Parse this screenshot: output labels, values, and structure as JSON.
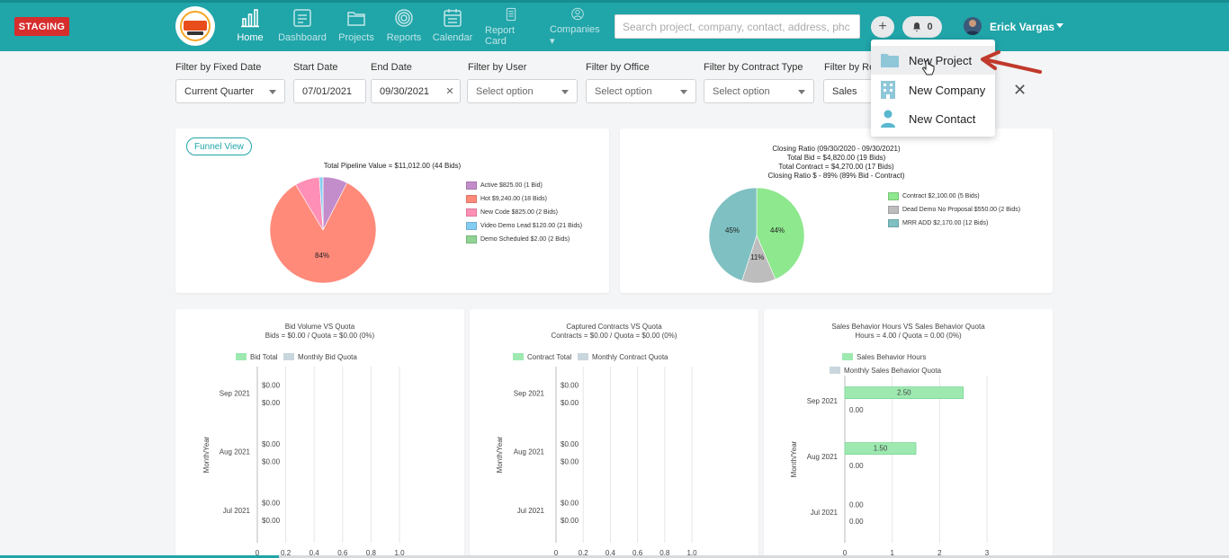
{
  "env_badge": "STAGING",
  "nav": [
    {
      "label": "Home",
      "icon": "bar-chart-icon"
    },
    {
      "label": "Dashboard",
      "icon": "dashboard-icon"
    },
    {
      "label": "Projects",
      "icon": "folder-icon"
    },
    {
      "label": "Reports",
      "icon": "target-icon"
    },
    {
      "label": "Calendar",
      "icon": "calendar-icon"
    },
    {
      "label": "Report Card",
      "icon": "report-card-icon"
    },
    {
      "label": "Companies",
      "icon": "user-circle-icon"
    }
  ],
  "search": {
    "placeholder": "Search project, company, contact, address, phc"
  },
  "notifications": {
    "count": "0"
  },
  "user": {
    "name": "Erick Vargas"
  },
  "filters": {
    "fixed_date": {
      "label": "Filter by Fixed Date",
      "value": "Current Quarter"
    },
    "start_date": {
      "label": "Start Date",
      "value": "07/01/2021"
    },
    "end_date": {
      "label": "End Date",
      "value": "09/30/2021"
    },
    "user": {
      "label": "Filter by User",
      "value": "Select option"
    },
    "office": {
      "label": "Filter by Office",
      "value": "Select option"
    },
    "contract_type": {
      "label": "Filter by Contract Type",
      "value": "Select option"
    },
    "report": {
      "label": "Filter by Re",
      "value": "Sales"
    }
  },
  "dropdown": {
    "items": [
      {
        "label": "New Project",
        "icon": "folder-icon"
      },
      {
        "label": "New Company",
        "icon": "building-icon"
      },
      {
        "label": "New Contact",
        "icon": "person-icon"
      }
    ]
  },
  "pipeline_card": {
    "funnel_button": "Funnel View",
    "title": "Total Pipeline Value = $11,012.00 (44 Bids)",
    "pie_label": "84%",
    "legend": [
      {
        "label": "Active $825.00 (1 Bid)",
        "color": "#c38ccb"
      },
      {
        "label": "Hot $9,240.00 (18 Bids)",
        "color": "#ff8a7a"
      },
      {
        "label": "New Code $825.00 (2 Bids)",
        "color": "#ff8fb6"
      },
      {
        "label": "Video Demo Lead $120.00 (21 Bids)",
        "color": "#84cdf2"
      },
      {
        "label": "Demo Scheduled $2.00 (2 Bids)",
        "color": "#8fd493"
      }
    ]
  },
  "closing_card": {
    "title_lines": [
      "Closing Ratio (09/30/2020 - 09/30/2021)",
      "Total Bid = $4,820.00 (19 Bids)",
      "Total Contract = $4,270.00 (17 Bids)",
      "Closing Ratio $ - 89% (89% Bid - Contract)"
    ],
    "pie_labels": [
      "44%",
      "11%",
      "45%"
    ],
    "legend": [
      {
        "label": "Contract $2,100.00 (5 Bids)",
        "color": "#8ee88e"
      },
      {
        "label": "Dead Demo No Proposal  $550.00 (2 Bids)",
        "color": "#bdbdbd"
      },
      {
        "label": "MRR ADD $2,170.00 (12 Bids)",
        "color": "#7fc0c2"
      }
    ]
  },
  "colors": {
    "accent": "#20a5a9",
    "staging": "#d62d2d",
    "bar_green": "#9de9b0",
    "bar_gray": "#c9d6de"
  },
  "chart_data": [
    {
      "type": "pie",
      "title": "Total Pipeline Value = $11,012.00 (44 Bids)",
      "labels": [
        "Active",
        "Hot",
        "New Code",
        "Video Demo Lead",
        "Demo Scheduled"
      ],
      "values": [
        825,
        9240,
        825,
        120,
        2
      ],
      "slice_labels": [
        "",
        "84%",
        "",
        "",
        ""
      ]
    },
    {
      "type": "pie",
      "title": "Closing Ratio (09/30/2020 - 09/30/2021)",
      "labels": [
        "Contract",
        "Dead Demo No Proposal",
        "MRR ADD"
      ],
      "values": [
        2100,
        550,
        2170
      ],
      "slice_labels": [
        "44%",
        "11%",
        "45%"
      ]
    },
    {
      "type": "bar",
      "orientation": "horizontal",
      "title": "Bid Volume VS Quota",
      "subtitle": "Bids = $0.00 / Quota = $0.00 (0%)",
      "ylabel": "Month/Year",
      "categories": [
        "Sep 2021",
        "Aug 2021",
        "Jul 2021"
      ],
      "series": [
        {
          "name": "Bid Total",
          "values": [
            0,
            0,
            0
          ],
          "labels": [
            "$0.00",
            "$0.00",
            "$0.00"
          ]
        },
        {
          "name": "Monthly Bid Quota",
          "values": [
            0,
            0,
            0
          ],
          "labels": [
            "$0.00",
            "$0.00",
            "$0.00"
          ]
        }
      ],
      "xticks": [
        "0",
        "0.2",
        "0.4",
        "0.6",
        "0.8",
        "1.0"
      ],
      "xlim": [
        0,
        1.0
      ]
    },
    {
      "type": "bar",
      "orientation": "horizontal",
      "title": "Captured Contracts VS Quota",
      "subtitle": "Contracts = $0.00 / Quota = $0.00 (0%)",
      "ylabel": "Month/Year",
      "categories": [
        "Sep 2021",
        "Aug 2021",
        "Jul 2021"
      ],
      "series": [
        {
          "name": "Contract Total",
          "values": [
            0,
            0,
            0
          ],
          "labels": [
            "$0.00",
            "$0.00",
            "$0.00"
          ]
        },
        {
          "name": "Monthly Contract Quota",
          "values": [
            0,
            0,
            0
          ],
          "labels": [
            "$0.00",
            "$0.00",
            "$0.00"
          ]
        }
      ],
      "xticks": [
        "0",
        "0.2",
        "0.4",
        "0.6",
        "0.8",
        "1.0"
      ],
      "xlim": [
        0,
        1.0
      ]
    },
    {
      "type": "bar",
      "orientation": "horizontal",
      "title": "Sales Behavior Hours VS Sales Behavior Quota",
      "subtitle": "Hours = 4.00 / Quota = 0.00 (0%)",
      "ylabel": "Month/Year",
      "categories": [
        "Sep 2021",
        "Aug 2021",
        "Jul 2021"
      ],
      "series": [
        {
          "name": "Sales Behavior Hours",
          "values": [
            2.5,
            1.5,
            0
          ],
          "labels": [
            "2.50",
            "1.50",
            "0.00"
          ]
        },
        {
          "name": "Monthly Sales Behavior Quota",
          "values": [
            0,
            0,
            0
          ],
          "labels": [
            "0.00",
            "0.00",
            "0.00"
          ]
        }
      ],
      "xticks": [
        "0",
        "1",
        "2",
        "3"
      ],
      "xlim": [
        0,
        3
      ]
    }
  ]
}
